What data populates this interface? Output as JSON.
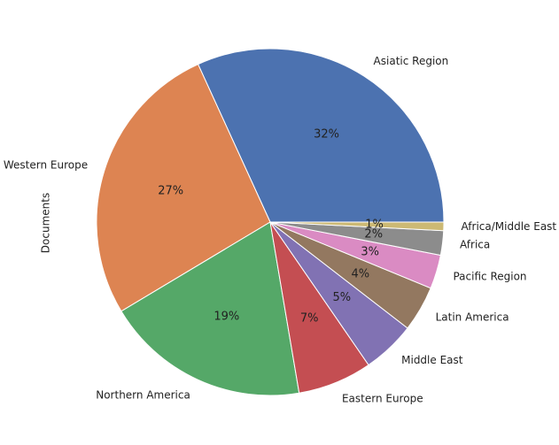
{
  "chart_data": {
    "type": "pie",
    "ylabel": "Documents",
    "categories": [
      "Asiatic Region",
      "Western Europe",
      "Northern America",
      "Eastern Europe",
      "Middle East",
      "Latin America",
      "Pacific Region",
      "Africa",
      "Africa/Middle East"
    ],
    "values": [
      32.2,
      27.1,
      19.3,
      7.0,
      5.0,
      4.3,
      3.2,
      2.3,
      0.8
    ],
    "percent_labels": [
      "32%",
      "27%",
      "19%",
      "7%",
      "5%",
      "4%",
      "3%",
      "2%",
      "1%"
    ],
    "colors": [
      "#4c72b0",
      "#dd8452",
      "#55a868",
      "#c44e52",
      "#8172b3",
      "#937860",
      "#da8bc3",
      "#8c8c8c",
      "#ccb974"
    ],
    "start_angle_deg": 0,
    "direction": "counterclockwise"
  }
}
